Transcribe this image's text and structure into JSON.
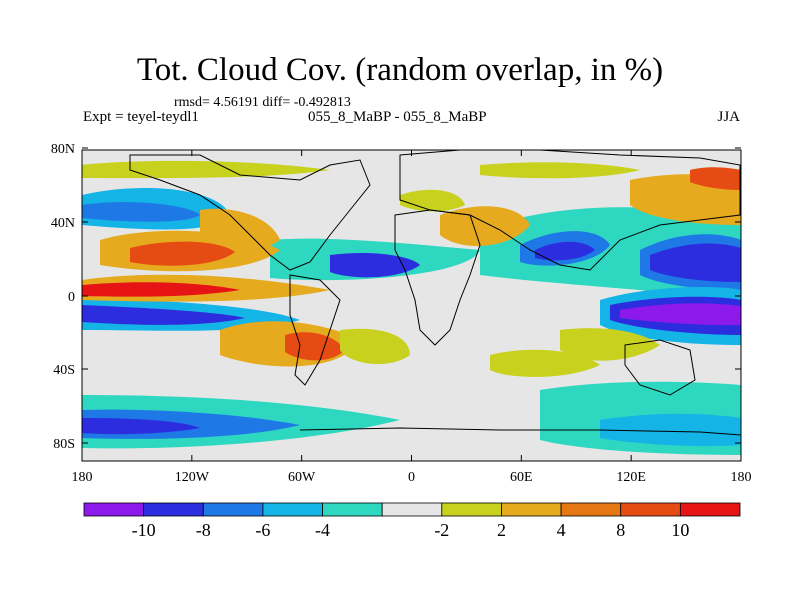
{
  "title": "Tot. Cloud Cov. (random overlap, in %)",
  "stats": "rmsd= 4.56191 diff= -0.492813",
  "experiment": "Expt = teyel-teydl1",
  "period": "055_8_MaBP - 055_8_MaBP",
  "season": "JJA",
  "x_ticks": [
    "180",
    "120W",
    "60W",
    "0",
    "60E",
    "120E",
    "180"
  ],
  "y_ticks": [
    "80N",
    "40N",
    "0",
    "40S",
    "80S"
  ],
  "colorbar": {
    "colors": [
      "#8c1aeb",
      "#2d2de0",
      "#1e78e6",
      "#14b4e6",
      "#2ed8c0",
      "#e6e6e6",
      "#c8d21e",
      "#e6aa1e",
      "#e67814",
      "#e64b14",
      "#e61414"
    ],
    "labels": [
      "-10",
      "-8",
      "-6",
      "-4",
      "-2",
      "2",
      "4",
      "8",
      "10"
    ]
  }
}
